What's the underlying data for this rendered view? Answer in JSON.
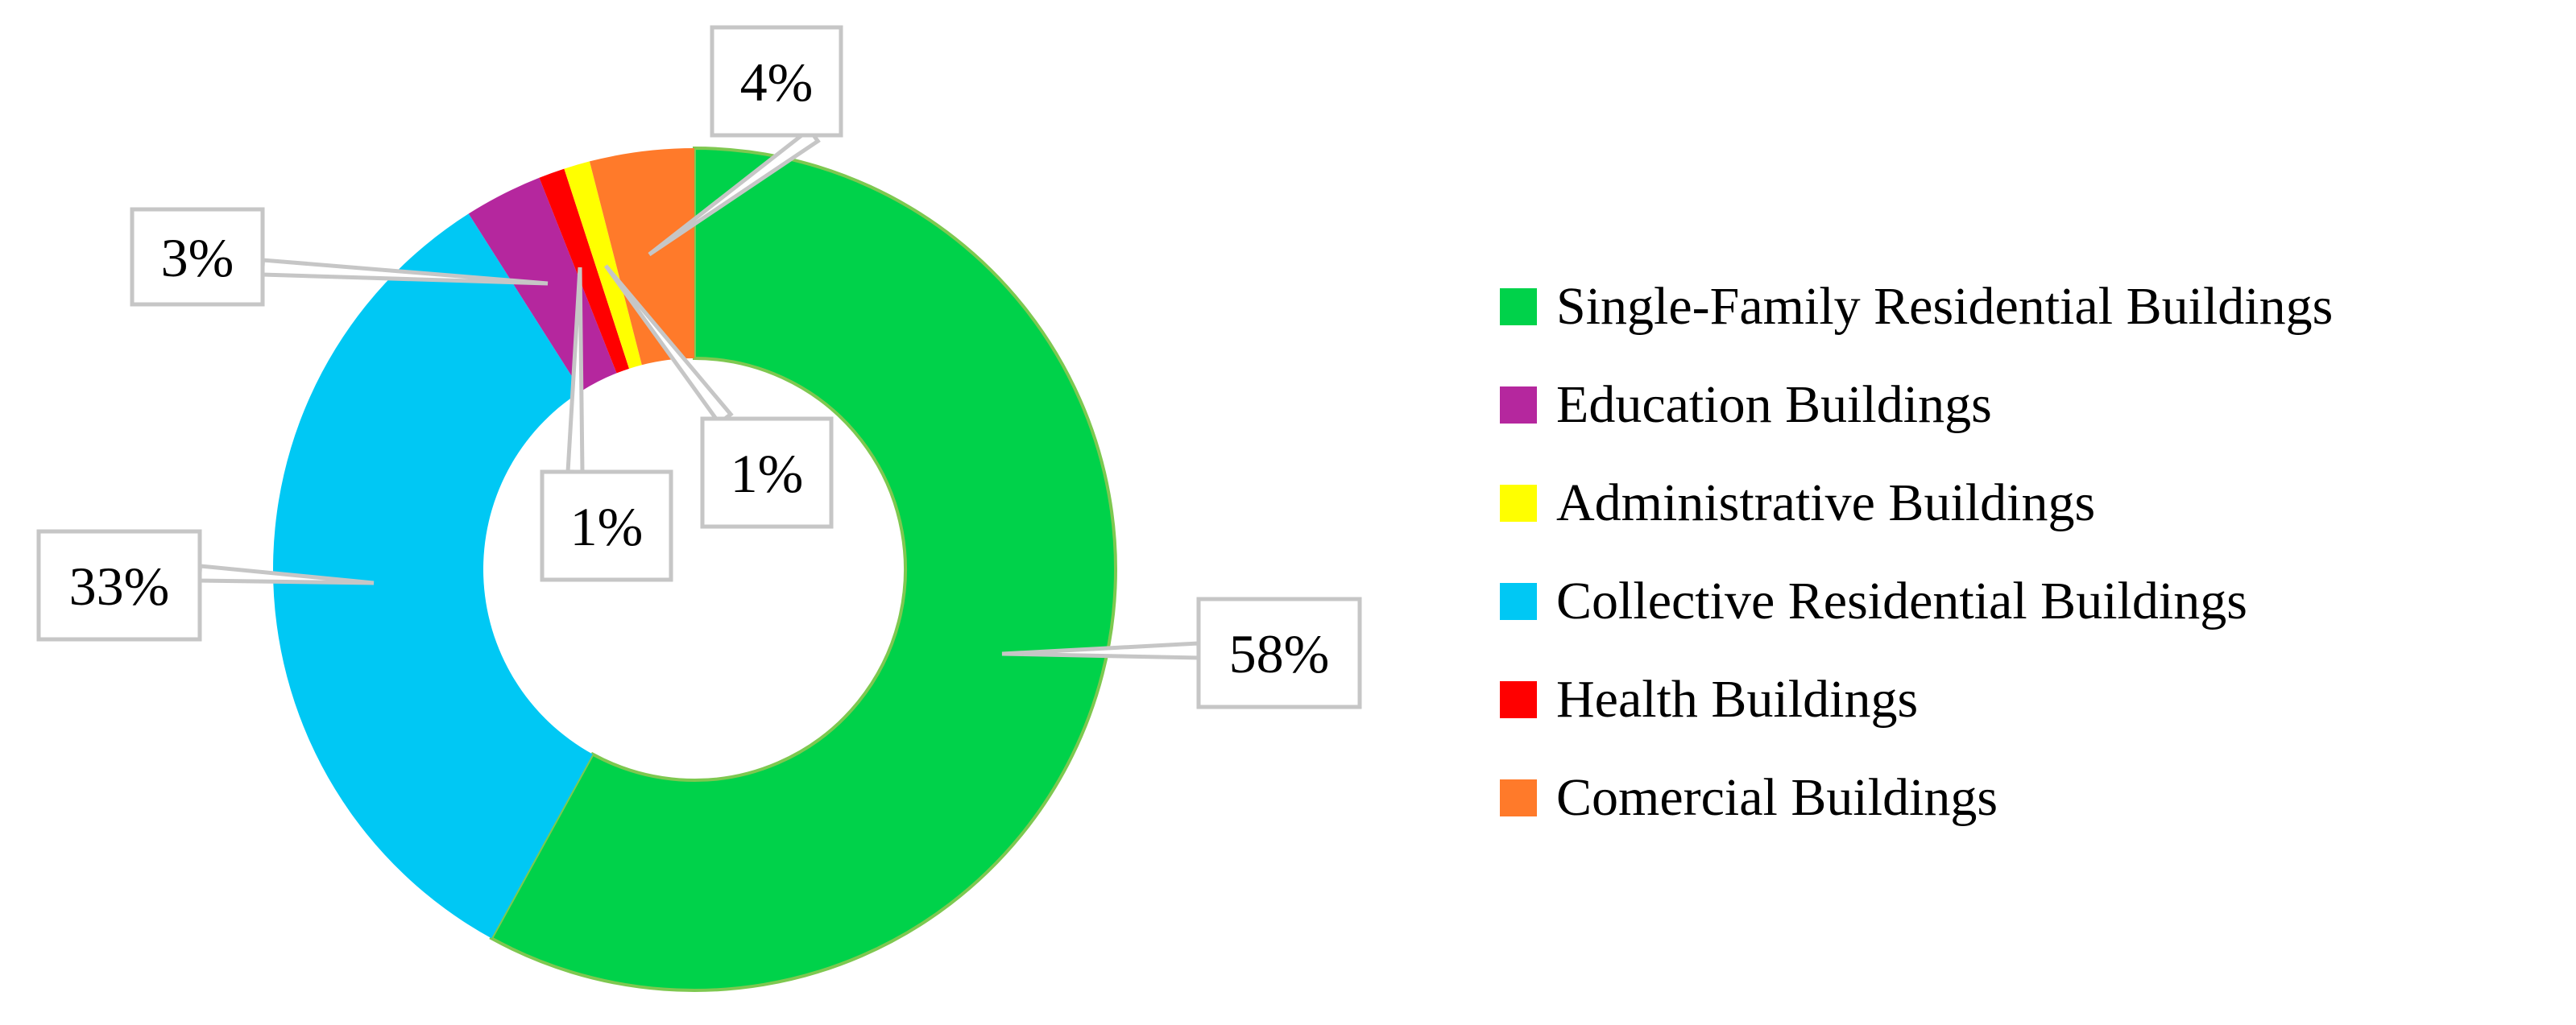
{
  "chart_data": {
    "type": "pie",
    "variant": "donut",
    "title": "",
    "series": [
      {
        "name": "Single-Family Residential Buildings",
        "value": 58,
        "label": "58%",
        "color": "#00d24a",
        "legend": "Single-Family Residential Buildings"
      },
      {
        "name": "Collective Residential Buildings",
        "value": 33,
        "label": "33%",
        "color": "#00c8f4",
        "legend": "Collective Residential Buildings"
      },
      {
        "name": "Education Buildings",
        "value": 3,
        "label": "3%",
        "color": "#b5279e",
        "legend": "Education Buildings"
      },
      {
        "name": "Health Buildings",
        "value": 1,
        "label": "1%",
        "color": "#ff0000",
        "legend": "Health Buildings"
      },
      {
        "name": "Administrative Buildings",
        "value": 1,
        "label": "1%",
        "color": "#ffff00",
        "legend": "Administrative Buildings"
      },
      {
        "name": "Comercial Buildings",
        "value": 4,
        "label": "4%",
        "color": "#ff7a2a",
        "legend": "Comercial Buildings"
      }
    ],
    "legend_order": [
      "Single-Family Residential Buildings",
      "Education Buildings",
      "Administrative Buildings",
      "Collective Residential Buildings",
      "Health Buildings",
      "Comercial Buildings"
    ],
    "legend_position": "right",
    "callout_border_color": "#c6c6c6",
    "donut_outline_color": "#7ec850"
  }
}
